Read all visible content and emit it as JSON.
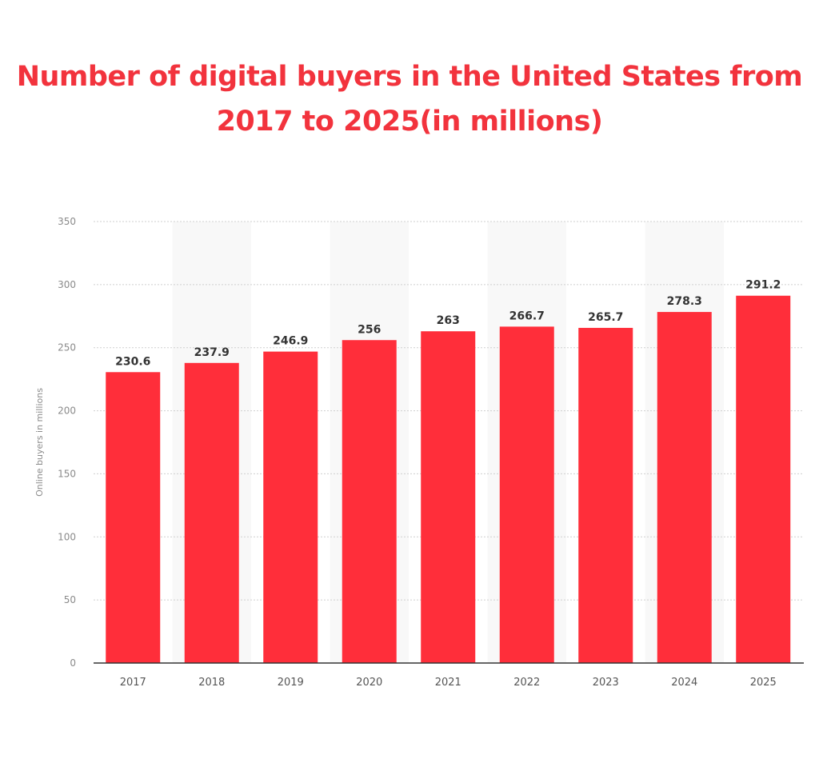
{
  "title_line1": "Number of digital buyers in the United States from",
  "title_line2": "2017 to 2025(in millions)",
  "chart_data": {
    "type": "bar",
    "title": "Number of digital buyers in the United States from 2017 to 2025(in millions)",
    "xlabel": "",
    "ylabel": "Online buyers in millions",
    "categories": [
      "2017",
      "2018",
      "2019",
      "2020",
      "2021",
      "2022",
      "2023",
      "2024",
      "2025"
    ],
    "values": [
      230.6,
      237.9,
      246.9,
      256,
      263,
      266.7,
      265.7,
      278.3,
      291.2
    ],
    "value_labels": [
      "230.6",
      "237.9",
      "246.9",
      "256",
      "263",
      "266.7",
      "265.7",
      "278.3",
      "291.2"
    ],
    "ylim": [
      0,
      350
    ],
    "yticks": [
      0,
      50,
      100,
      150,
      200,
      250,
      300,
      350
    ],
    "grid": true,
    "legend": "none",
    "bar_color": "#ff2e3a",
    "title_color": "#f2333d"
  }
}
